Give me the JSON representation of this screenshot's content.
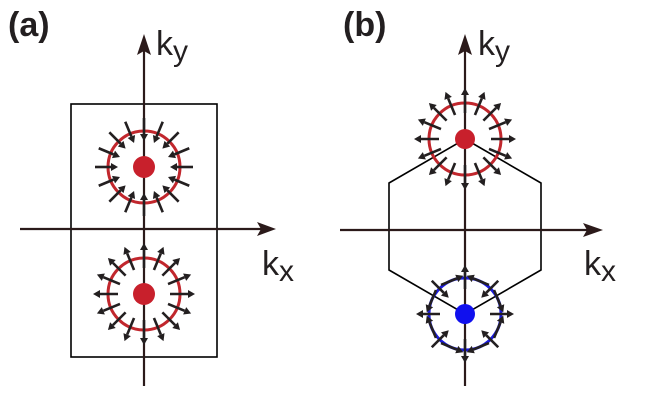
{
  "panels": [
    {
      "id": "a",
      "label": "(a)",
      "ky_label": "k",
      "ky_sub": "y",
      "kx_label": "k",
      "kx_sub": "x"
    },
    {
      "id": "b",
      "label": "(b)",
      "ky_label": "k",
      "ky_sub": "y",
      "kx_label": "k",
      "kx_sub": "x"
    }
  ],
  "colors": {
    "axis": "#2b1a1a",
    "arrow": "#231f20",
    "ring_red": "#c1272d",
    "ring_blue": "#1a1adf",
    "dot_red": "#c8202c",
    "dot_blue": "#1010ee",
    "box": "#000000"
  },
  "icons": {
    "axis_arrowhead": "triangle-arrowhead",
    "vector_arrow": "small-arrow"
  }
}
